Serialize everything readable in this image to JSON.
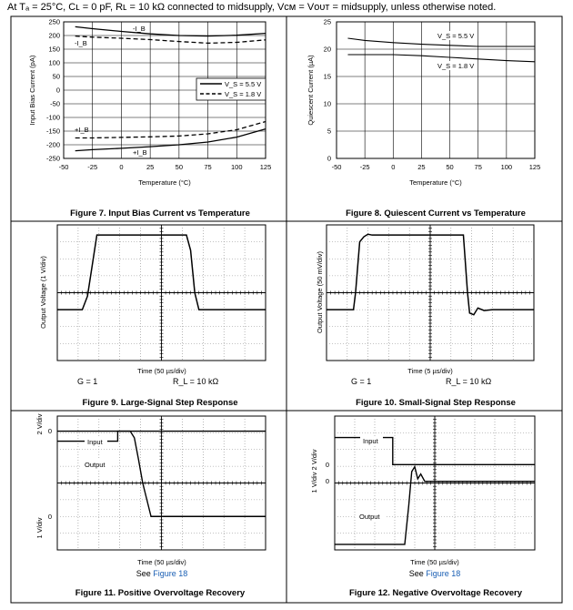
{
  "header": {
    "text": "At Tₐ = 25°C, Cʟ = 0 pF, Rʟ = 10 kΩ connected to midsupply, Vᴄᴍ = Vᴏᴜᴛ = midsupply, unless otherwise noted."
  },
  "fig7": {
    "caption": "Figure 7. Input Bias Current vs Temperature",
    "ylabel": "Input Bias Current (pA)",
    "xlabel": "Temperature (°C)",
    "xticks": [
      "-50",
      "-25",
      "0",
      "25",
      "50",
      "75",
      "100",
      "125"
    ],
    "yticks": [
      "250",
      "200",
      "150",
      "100",
      "50",
      "0",
      "-50",
      "-100",
      "-150",
      "-200",
      "-250"
    ],
    "legend": [
      "V_S = 5.5 V",
      "V_S = 1.8 V"
    ],
    "ann_minus1": "-I_B",
    "ann_minus2": "-I_B",
    "ann_plus1": "+I_B",
    "ann_plus2": "+I_B"
  },
  "fig8": {
    "caption": "Figure 8. Quiescent Current vs Temperature",
    "ylabel": "Quiescent Current (µA)",
    "xlabel": "Temperature (°C)",
    "xticks": [
      "-50",
      "-25",
      "0",
      "25",
      "50",
      "75",
      "100",
      "125"
    ],
    "yticks": [
      "25",
      "20",
      "15",
      "10",
      "5",
      "0"
    ],
    "ann_55": "V_S = 5.5 V",
    "ann_18": "V_S = 1.8 V"
  },
  "fig9": {
    "caption": "Figure 9. Large-Signal Step Response",
    "ylabel": "Output Voltage (1 V/div)",
    "xlabel": "Time (50 µs/div)",
    "cond_gain": "G = 1",
    "cond_load": "R_L = 10 kΩ"
  },
  "fig10": {
    "caption": "Figure 10. Small-Signal Step Response",
    "ylabel": "Output Voltage (50 mV/div)",
    "xlabel": "Time (5 µs/div)",
    "cond_gain": "G = 1",
    "cond_load": "R_L = 10 kΩ"
  },
  "fig11": {
    "caption": "Figure 11. Positive Overvoltage Recovery",
    "xlabel": "Time (50 µs/div)",
    "see": "See ",
    "see_link": "Figure 18",
    "label_input": "Input",
    "label_output": "Output",
    "zero_top": "0",
    "zero_bot": "0",
    "div_top": "2 V/div",
    "div_bot": "1 V/div"
  },
  "fig12": {
    "caption": "Figure 12. Negative Overvoltage Recovery",
    "xlabel": "Time (50 µs/div)",
    "see": "See ",
    "see_link": "Figure 18",
    "label_input": "Input",
    "label_output": "Output",
    "zero_top": "0",
    "zero_bot": "0",
    "div_top": "2 V/div",
    "div_bot": "1 V/div"
  },
  "chart_data": [
    {
      "type": "line",
      "title": "Figure 7. Input Bias Current vs Temperature",
      "xlabel": "Temperature (°C)",
      "ylabel": "Input Bias Current (pA)",
      "xlim": [
        -50,
        125
      ],
      "ylim": [
        -250,
        250
      ],
      "grid": true,
      "legend_position": "right",
      "series": [
        {
          "name": "-I_B, V_S = 5.5 V",
          "style": "solid",
          "x": [
            -40,
            -25,
            0,
            25,
            50,
            75,
            100,
            125
          ],
          "y": [
            232,
            225,
            215,
            206,
            200,
            198,
            201,
            208
          ]
        },
        {
          "name": "-I_B, V_S = 1.8 V",
          "style": "dashed",
          "x": [
            -40,
            -25,
            0,
            25,
            50,
            75,
            100,
            125
          ],
          "y": [
            198,
            194,
            190,
            185,
            178,
            172,
            175,
            184
          ]
        },
        {
          "name": "+I_B, V_S = 5.5 V",
          "style": "solid",
          "x": [
            -40,
            -25,
            0,
            25,
            50,
            75,
            100,
            125
          ],
          "y": [
            -222,
            -218,
            -213,
            -207,
            -200,
            -190,
            -172,
            -142
          ]
        },
        {
          "name": "+I_B, V_S = 1.8 V",
          "style": "dashed",
          "x": [
            -40,
            -25,
            0,
            25,
            50,
            75,
            100,
            125
          ],
          "y": [
            -175,
            -175,
            -173,
            -171,
            -168,
            -160,
            -145,
            -115
          ]
        }
      ]
    },
    {
      "type": "line",
      "title": "Figure 8. Quiescent Current vs Temperature",
      "xlabel": "Temperature (°C)",
      "ylabel": "Quiescent Current (µA)",
      "xlim": [
        -50,
        125
      ],
      "ylim": [
        0,
        25
      ],
      "grid": true,
      "series": [
        {
          "name": "V_S = 5.5 V",
          "x": [
            -40,
            -25,
            0,
            25,
            50,
            75,
            100,
            125
          ],
          "y": [
            22.0,
            21.6,
            21.2,
            20.9,
            20.7,
            20.5,
            20.5,
            20.5
          ]
        },
        {
          "name": "V_S = 1.8 V",
          "x": [
            -40,
            -25,
            0,
            25,
            50,
            75,
            100,
            125
          ],
          "y": [
            19.0,
            19.0,
            19.0,
            18.8,
            18.5,
            18.2,
            17.9,
            17.7
          ]
        }
      ]
    },
    {
      "type": "line",
      "title": "Figure 9. Large-Signal Step Response",
      "xlabel": "Time (50 µs/div)",
      "ylabel": "Output Voltage (1 V/div)",
      "xlim": [
        0,
        10
      ],
      "ylim": [
        -4,
        4
      ],
      "grid": true,
      "series": [
        {
          "name": "",
          "x": [
            0,
            1.2,
            1.45,
            1.7,
            1.9,
            6.2,
            6.4,
            6.6,
            6.8,
            10
          ],
          "y": [
            -1,
            -1,
            -0.2,
            1.8,
            3.4,
            3.4,
            2.5,
            0,
            -1,
            -1
          ]
        }
      ]
    },
    {
      "type": "line",
      "title": "Figure 10. Small-Signal Step Response",
      "xlabel": "Time (5 µs/div)",
      "ylabel": "Output Voltage (50 mV/div)",
      "xlim": [
        0,
        10
      ],
      "ylim": [
        -4,
        4
      ],
      "grid": true,
      "series": [
        {
          "name": "",
          "x": [
            0,
            1.3,
            1.4,
            1.5,
            1.6,
            1.8,
            2.0,
            2.2,
            6.6,
            6.8,
            6.9,
            7.1,
            7.3,
            7.6,
            8.0,
            10
          ],
          "y": [
            -1,
            -1,
            0,
            1.5,
            3.0,
            3.3,
            3.45,
            3.4,
            3.4,
            0,
            -1.2,
            -1.3,
            -0.9,
            -1.05,
            -1.0,
            -1.0
          ]
        }
      ]
    },
    {
      "type": "line",
      "title": "Figure 11. Positive Overvoltage Recovery",
      "xlabel": "Time (50 µs/div)",
      "xlim": [
        0,
        10
      ],
      "grid": true,
      "series": [
        {
          "name": "Input",
          "x": [
            0,
            2.9,
            2.9,
            10
          ],
          "y": [
            -0.6,
            -0.6,
            0,
            0
          ],
          "unit": "2 V/div"
        },
        {
          "name": "Output",
          "x": [
            0,
            3.5,
            3.7,
            3.9,
            4.1,
            4.3,
            4.5,
            10
          ],
          "y": [
            5.1,
            5.1,
            4.7,
            3.4,
            2.0,
            1.0,
            0,
            0
          ],
          "unit": "1 V/div"
        }
      ]
    },
    {
      "type": "line",
      "title": "Figure 12. Negative Overvoltage Recovery",
      "xlabel": "Time (50 µs/div)",
      "xlim": [
        0,
        10
      ],
      "grid": true,
      "series": [
        {
          "name": "Input",
          "x": [
            0,
            2.9,
            2.9,
            10
          ],
          "y": [
            0.6,
            0.6,
            0,
            0
          ],
          "unit": "2 V/div"
        },
        {
          "name": "Output",
          "x": [
            0,
            3.5,
            3.7,
            3.85,
            4.0,
            4.15,
            4.3,
            4.5,
            10
          ],
          "y": [
            -2.6,
            -2.6,
            -1.0,
            0.4,
            0.6,
            0.1,
            0.3,
            0,
            0
          ],
          "unit": "1 V/div"
        }
      ]
    }
  ]
}
